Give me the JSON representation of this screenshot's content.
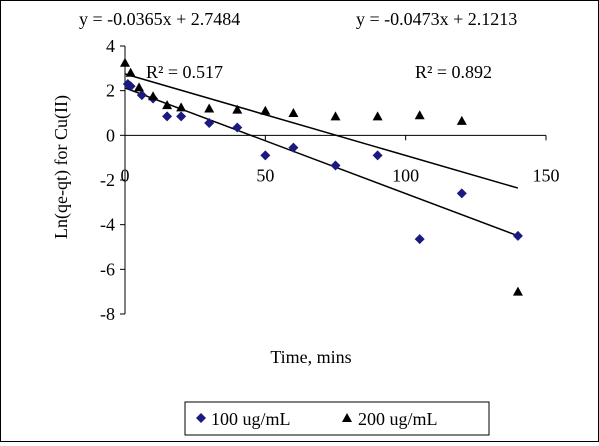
{
  "chart_data": {
    "type": "scatter",
    "xlabel": "Time, mins",
    "ylabel": "Ln(qe-qt) for Cu(II)",
    "xlim": [
      0,
      150
    ],
    "ylim": [
      -8,
      4
    ],
    "x_ticks": [
      0,
      50,
      100,
      150
    ],
    "y_ticks": [
      4,
      2,
      0,
      -2,
      -4,
      -6,
      -8
    ],
    "grid": false,
    "legend_position": "bottom",
    "series": [
      {
        "name": "100 ug/mL",
        "marker": "diamond",
        "color": "#1a1a80",
        "x": [
          1,
          2,
          6,
          10,
          15,
          20,
          30,
          40,
          50,
          60,
          75,
          90,
          105,
          120,
          140
        ],
        "y": [
          2.3,
          2.2,
          1.8,
          1.65,
          0.85,
          0.85,
          0.55,
          0.35,
          -0.9,
          -0.55,
          -1.35,
          -0.9,
          -4.65,
          -2.6,
          -4.5
        ]
      },
      {
        "name": "200 ug/mL",
        "marker": "triangle",
        "color": "#000000",
        "x": [
          0,
          2,
          5,
          10,
          15,
          20,
          30,
          40,
          50,
          60,
          75,
          90,
          105,
          120,
          140
        ],
        "y": [
          3.25,
          2.8,
          2.15,
          1.75,
          1.35,
          1.25,
          1.2,
          1.15,
          1.1,
          1.0,
          0.85,
          0.85,
          0.9,
          0.65,
          -7.0
        ]
      }
    ],
    "trendlines": [
      {
        "equation": "y = -0.0365x + 2.7484",
        "r2": "R² = 0.517",
        "slope": -0.0365,
        "intercept": 2.7484
      },
      {
        "equation": "y = -0.0473x + 2.1213",
        "r2": "R² = 0.892",
        "slope": -0.0473,
        "intercept": 2.1213
      }
    ]
  }
}
